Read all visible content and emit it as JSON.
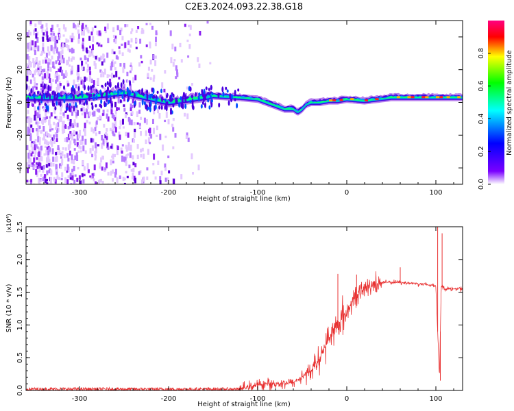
{
  "title": "C2E3.2024.093.22.38.G18",
  "chart_data": [
    {
      "type": "heatmap",
      "xlabel": "Height of straight line (km)",
      "ylabel": "Frequency (Hz)",
      "xlim": [
        -360,
        130
      ],
      "ylim": [
        -50,
        50
      ],
      "xticks": [
        -300,
        -200,
        -100,
        0,
        100
      ],
      "yticks": [
        -40,
        -20,
        0,
        20,
        40
      ],
      "colorbar": {
        "label": "Normalized spectral amplitude",
        "range": [
          0,
          1
        ],
        "ticks": [
          "0.0",
          "0.2",
          "0.4",
          "0.6",
          "0.8"
        ],
        "stops": [
          "#ffffff",
          "#7a00ff",
          "#0000ff",
          "#00ffff",
          "#00ff00",
          "#ffff00",
          "#ff0000",
          "#ff00aa"
        ]
      },
      "ridge": {
        "x": [
          -360,
          -300,
          -250,
          -200,
          -150,
          -120,
          -100,
          -90,
          -80,
          -70,
          -60,
          -55,
          -50,
          -45,
          -40,
          -30,
          -20,
          -10,
          0,
          20,
          50,
          100,
          130
        ],
        "y": [
          3,
          3,
          6,
          0,
          4,
          3,
          2,
          0,
          -2,
          -4,
          -4,
          -6,
          -4,
          -1,
          0,
          0,
          1,
          1,
          2,
          1,
          3,
          3,
          3
        ]
      },
      "noise_extent_x": [
        -360,
        -140
      ]
    },
    {
      "type": "line",
      "xlabel": "Height of straight line (km)",
      "ylabel": "SNR (10 * v/v)",
      "y_multiplier": "(x10⁴)",
      "xlim": [
        -360,
        130
      ],
      "ylim": [
        0,
        2.5
      ],
      "xticks": [
        -300,
        -200,
        -100,
        0,
        100
      ],
      "yticks": [
        "0.0",
        "0.5",
        "1.0",
        "1.5",
        "2.0",
        "2.5"
      ],
      "color": "#e83030",
      "envelope": {
        "x": [
          -360,
          -120,
          -110,
          -90,
          -60,
          -40,
          -30,
          -20,
          -10,
          0,
          10,
          20,
          30,
          40,
          60,
          80,
          100,
          104,
          106,
          110,
          130
        ],
        "y": [
          0.02,
          0.02,
          0.06,
          0.1,
          0.12,
          0.3,
          0.5,
          0.8,
          1.0,
          1.2,
          1.45,
          1.55,
          1.62,
          1.65,
          1.65,
          1.63,
          1.6,
          0.2,
          1.6,
          1.55,
          1.55
        ]
      },
      "spikes": [
        {
          "x": -10,
          "y": 1.78
        },
        {
          "x": 11,
          "y": 1.77
        },
        {
          "x": 60,
          "y": 1.88
        },
        {
          "x": 102,
          "y": 2.5
        },
        {
          "x": 105,
          "y": 0.15
        },
        {
          "x": 107,
          "y": 2.4
        }
      ]
    }
  ]
}
